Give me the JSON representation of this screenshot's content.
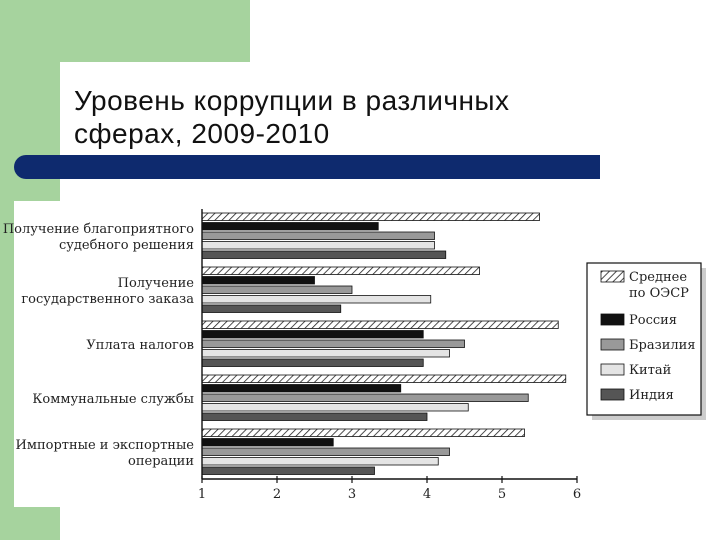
{
  "title_lines": [
    "Уровень коррупции в различных",
    "сферах, 2009-2010"
  ],
  "colors": {
    "background_accent": "#a6d39e",
    "header_bar": "#0e2a6e",
    "series": [
      "hatch",
      "#111111",
      "#999999",
      "#e4e4e4",
      "#555555"
    ]
  },
  "chart_data": {
    "type": "bar",
    "orientation": "horizontal",
    "categories": [
      [
        "Получение благоприятного",
        "судебного решения"
      ],
      [
        "Получение",
        "государственного заказа"
      ],
      [
        "Уплата налогов"
      ],
      [
        "Коммунальные службы"
      ],
      [
        "Импортные и экспортные",
        "операции"
      ]
    ],
    "series": [
      {
        "name": [
          "Среднее",
          "по ОЭСР"
        ],
        "values": [
          5.5,
          4.7,
          5.75,
          5.85,
          5.3
        ]
      },
      {
        "name": [
          "Россия"
        ],
        "values": [
          3.35,
          2.5,
          3.95,
          3.65,
          2.75
        ]
      },
      {
        "name": [
          "Бразилия"
        ],
        "values": [
          4.1,
          3.0,
          4.5,
          5.35,
          4.3
        ]
      },
      {
        "name": [
          "Китай"
        ],
        "values": [
          4.1,
          4.05,
          4.3,
          4.55,
          4.15
        ]
      },
      {
        "name": [
          "Индия"
        ],
        "values": [
          4.25,
          2.85,
          3.95,
          4.0,
          3.3
        ]
      }
    ],
    "xlim": [
      1,
      6
    ],
    "xticks": [
      "1",
      "2",
      "3",
      "4",
      "5",
      "6"
    ],
    "legend_position": "right"
  }
}
